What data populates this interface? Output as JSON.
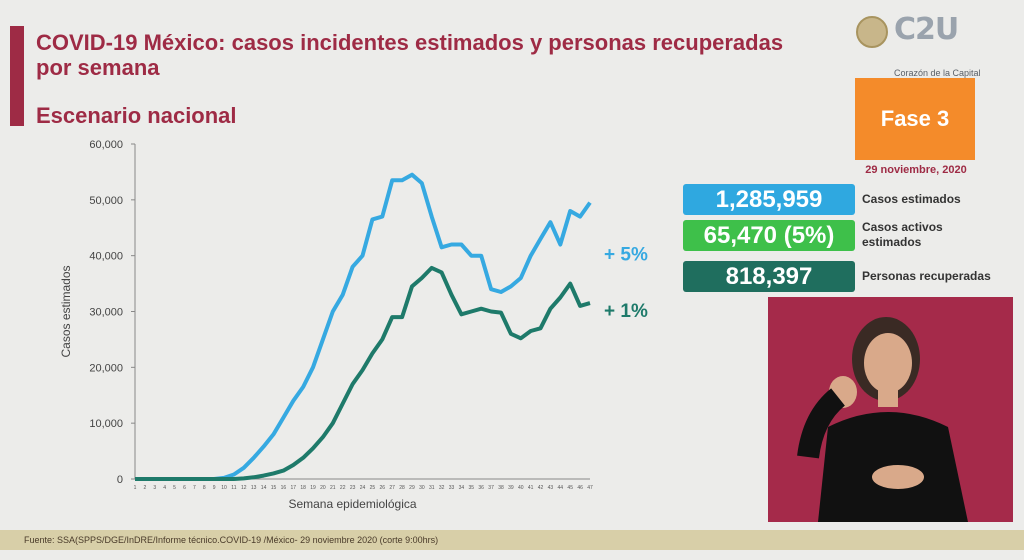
{
  "header": {
    "title": "COVID-19 México: casos incidentes estimados y personas recuperadas por semana",
    "subtitle": "Escenario nacional"
  },
  "branding": {
    "logo_text": "C2U",
    "tagline": "Corazón de la Capital"
  },
  "phase": {
    "label": "Fase 3",
    "date": "29 noviembre, 2020"
  },
  "stats": [
    {
      "value": "1,285,959",
      "label": "Casos estimados",
      "color": "#2fa8e0"
    },
    {
      "value": "65,470 (5%)",
      "label": "Casos activos estimados",
      "color": "#3ec04a"
    },
    {
      "value": "818,397",
      "label": "Personas recuperadas",
      "color": "#1f6e5e"
    }
  ],
  "footer": {
    "source": "Fuente: SSA(SPPS/DGE/InDRE/Informe técnico.COVID-19 /México- 29 noviembre 2020 (corte 9:00hrs)"
  },
  "chart_data": {
    "type": "line",
    "xlabel": "Semana epidemiológica",
    "ylabel": "Casos estimados",
    "ylim": [
      0,
      60000
    ],
    "yticks": [
      "0",
      "10,000",
      "20,000",
      "30,000",
      "40,000",
      "50,000",
      "60,000"
    ],
    "x": [
      1,
      2,
      3,
      4,
      5,
      6,
      7,
      8,
      9,
      10,
      11,
      12,
      13,
      14,
      15,
      16,
      17,
      18,
      19,
      20,
      21,
      22,
      23,
      24,
      25,
      26,
      27,
      28,
      29,
      30,
      31,
      32,
      33,
      34,
      35,
      36,
      37,
      38,
      39,
      40,
      41,
      42,
      43,
      44,
      45,
      46,
      47
    ],
    "grid": false,
    "series": [
      {
        "color": "#36a9e1",
        "annotation": "+ 5%",
        "values": [
          0,
          0,
          0,
          0,
          0,
          0,
          0,
          0,
          0,
          200,
          800,
          2000,
          3800,
          5800,
          8000,
          11000,
          14000,
          16500,
          20000,
          25000,
          30000,
          33000,
          38000,
          40000,
          46500,
          47000,
          53500,
          53500,
          54500,
          53000,
          47000,
          41500,
          42000,
          42000,
          40000,
          40000,
          34000,
          33500,
          34500,
          36000,
          40000,
          43000,
          46000,
          42000,
          48000,
          47000,
          49500
        ]
      },
      {
        "color": "#1e7a6a",
        "annotation": "+ 1%",
        "values": [
          0,
          0,
          0,
          0,
          0,
          0,
          0,
          0,
          0,
          0,
          0,
          100,
          300,
          600,
          1000,
          1500,
          2500,
          3800,
          5500,
          7500,
          10000,
          13500,
          17000,
          19500,
          22500,
          25000,
          29000,
          29000,
          34500,
          36000,
          37800,
          37000,
          33000,
          29500,
          30000,
          30500,
          30000,
          29800,
          26000,
          25200,
          26500,
          27000,
          30500,
          32500,
          35000,
          31000,
          31500
        ]
      }
    ]
  }
}
